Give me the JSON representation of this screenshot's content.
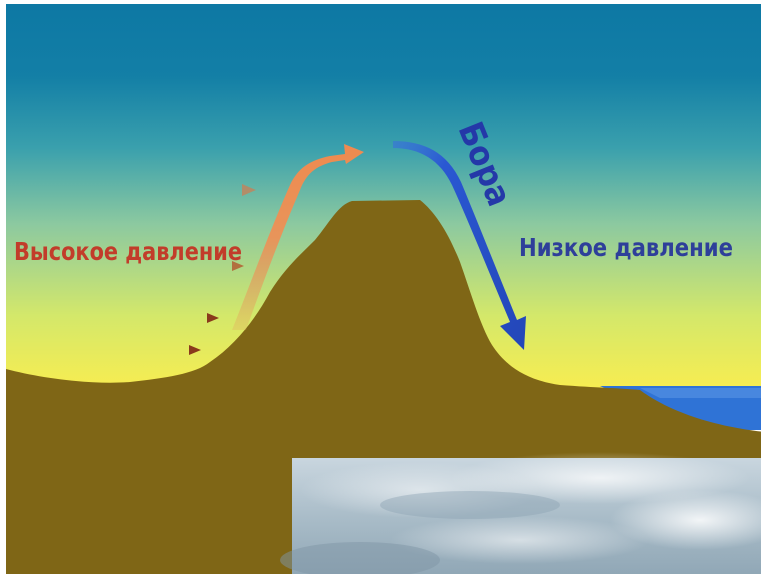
{
  "labels": {
    "high_pressure": "Высокое давление",
    "low_pressure": "Низкое давление",
    "bora": "Бора"
  },
  "colors": {
    "sky_top": "#0f7ca6",
    "sky_mid": "#55b6b0",
    "sky_low": "#d9ea5e",
    "horizon_glow": "#ffe84a",
    "mountain": "#7f6616",
    "sea": "#2f73d6",
    "high_pressure_text": "#c23c2a",
    "low_pressure_text": "#2e3f9a",
    "bora_arrow": "#2a52c9",
    "updraft_arrow": "#e8945a",
    "wind_lines": "#b3562c",
    "photo_sky": "#b8ccd8"
  }
}
